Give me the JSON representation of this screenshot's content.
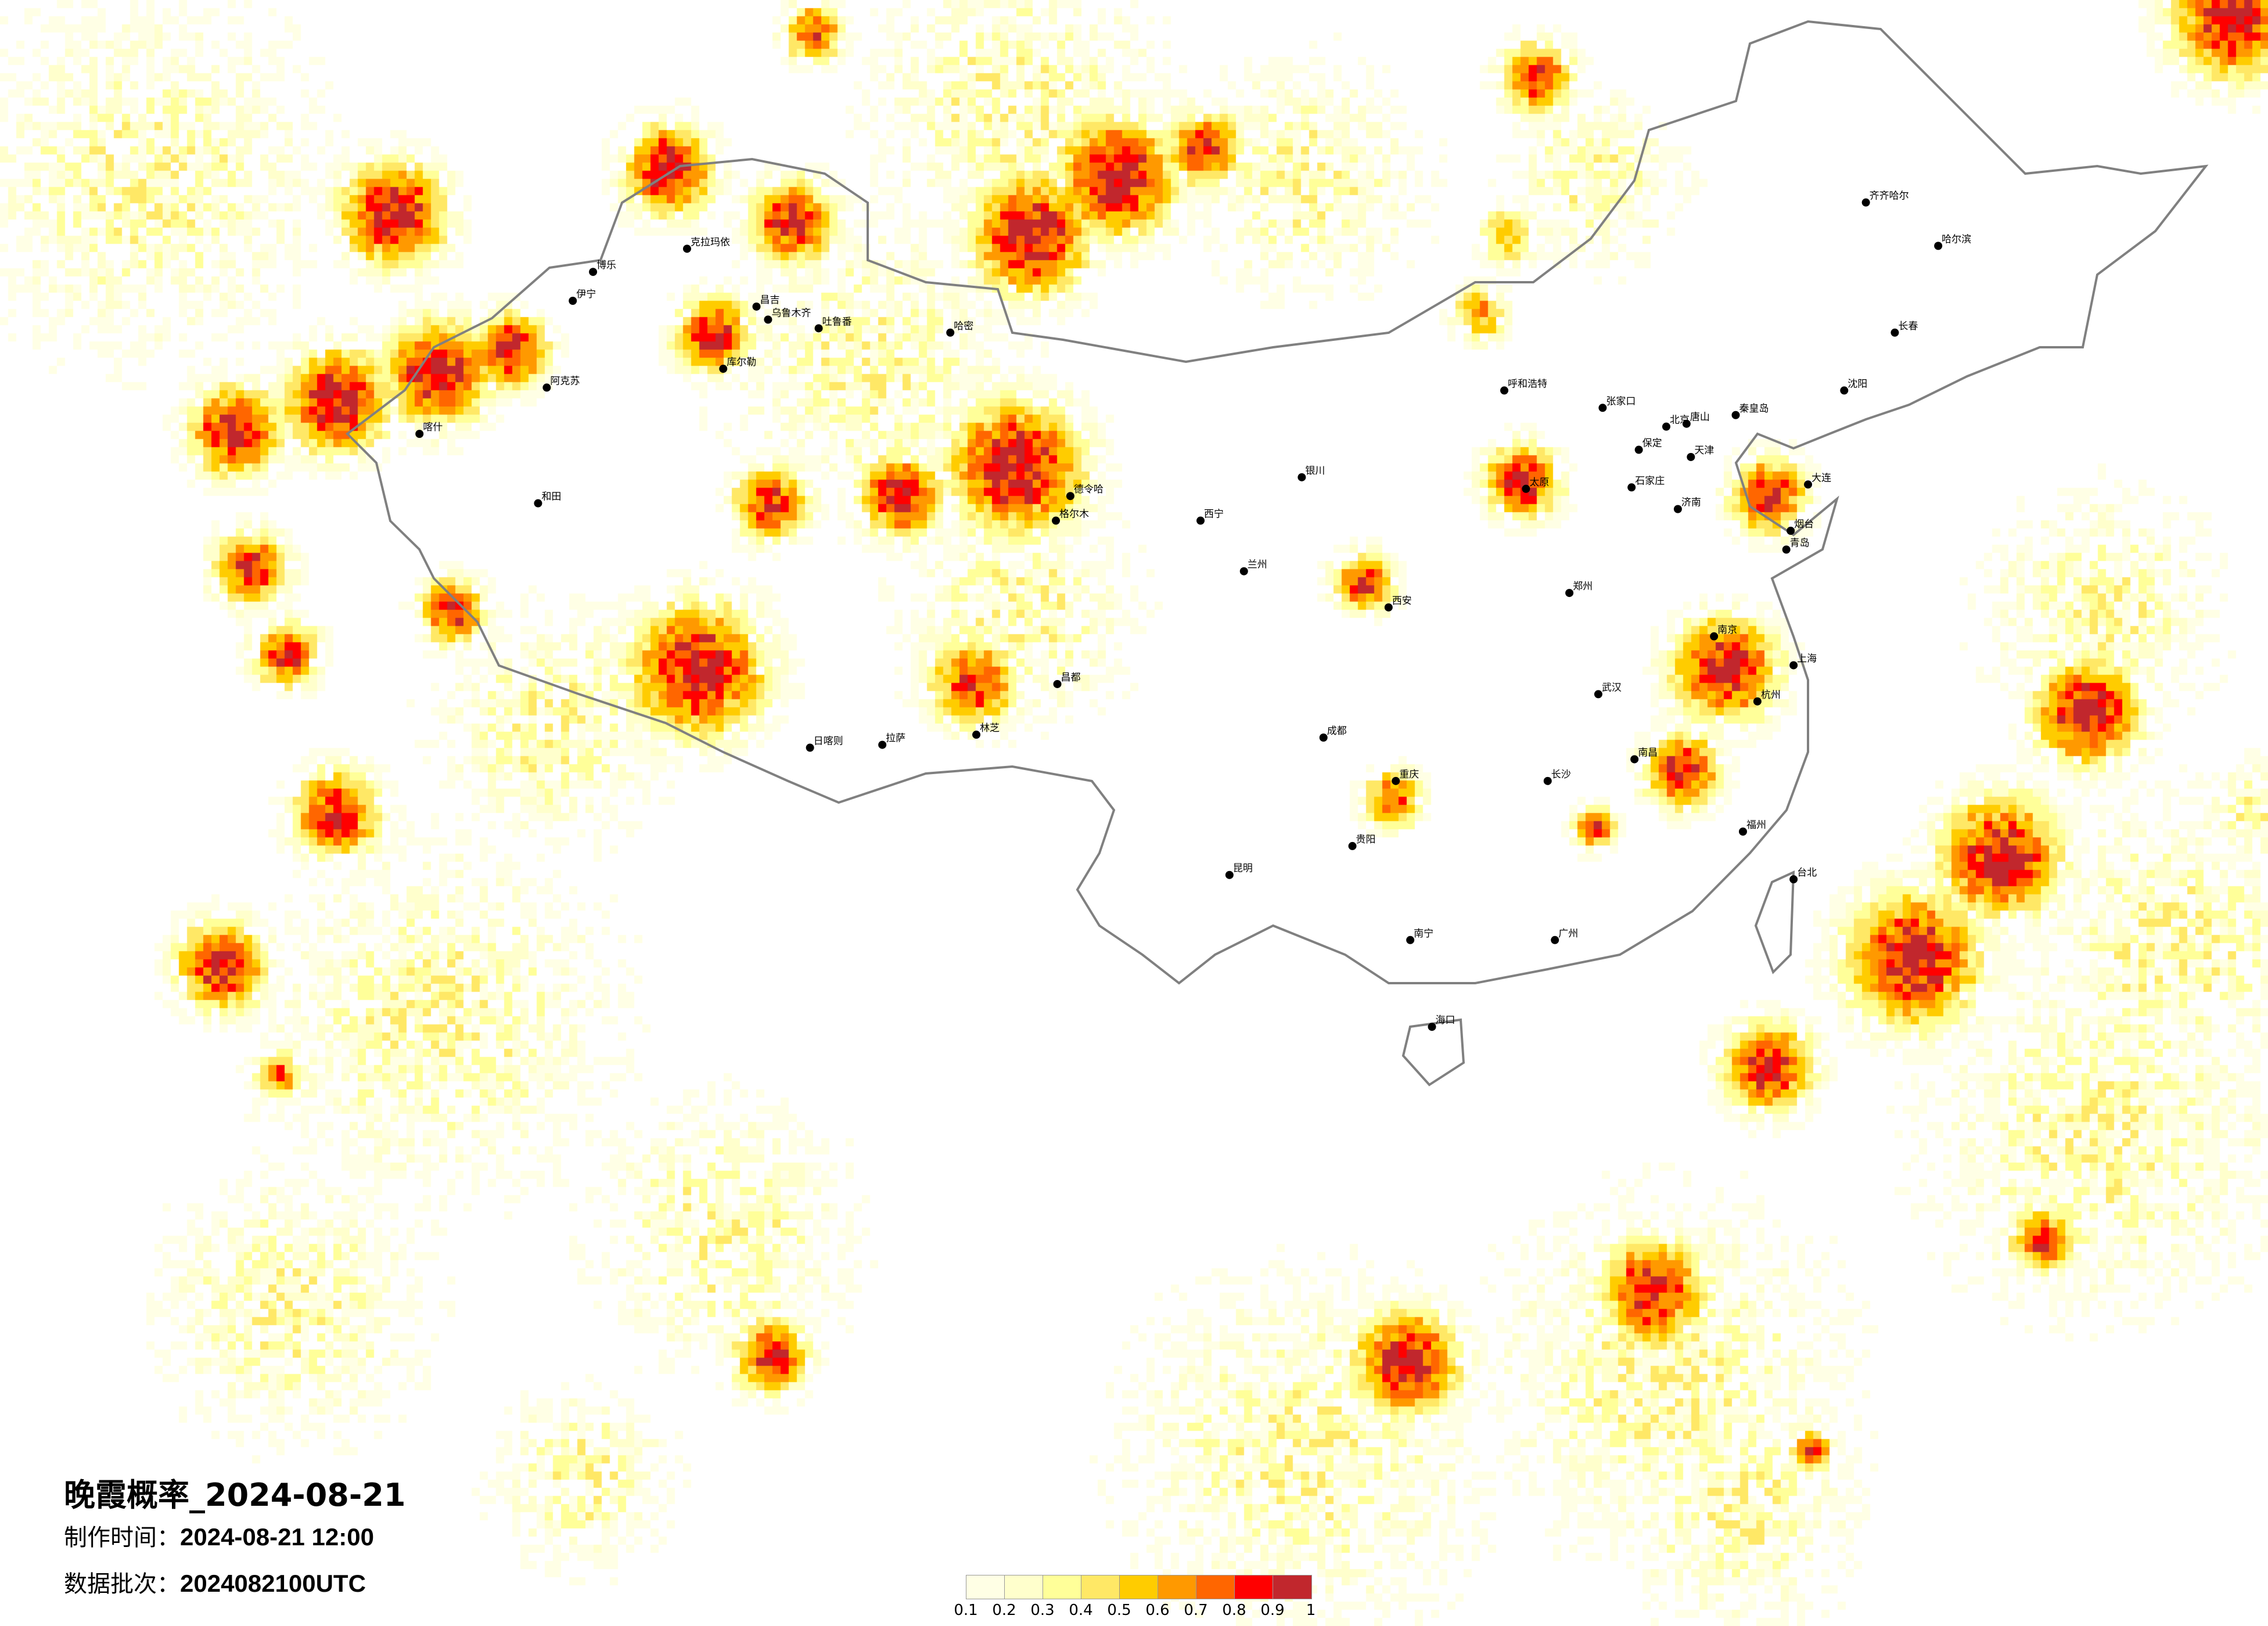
{
  "title": "晚霞概率_2024-08-21",
  "make_time": {
    "label": "制作时间：",
    "value": "2024-08-21 12:00"
  },
  "data_batch": {
    "label": "数据批次：",
    "value": "2024082100UTC"
  },
  "legend": {
    "ticks": [
      "0.1",
      "0.2",
      "0.3",
      "0.4",
      "0.5",
      "0.6",
      "0.7",
      "0.8",
      "0.9",
      "1"
    ],
    "colors": [
      "#FFFFE5",
      "#FFFFCC",
      "#FFFF99",
      "#FFE866",
      "#FFCC00",
      "#FF9900",
      "#FF6600",
      "#FF0000",
      "#C1272D"
    ]
  },
  "cities": [
    "克拉玛依",
    "伊宁",
    "博乐",
    "阿克苏",
    "库尔勒",
    "昌吉",
    "乌鲁木齐",
    "吐鲁番",
    "和田",
    "喀什",
    "哈密",
    "德令哈",
    "格尔木",
    "拉萨",
    "日喀则",
    "林芝",
    "昌都",
    "西宁",
    "兰州",
    "银川",
    "呼和浩特",
    "北京",
    "天津",
    "石家庄",
    "保定",
    "张家口",
    "太原",
    "济南",
    "青岛",
    "大连",
    "沈阳",
    "长春",
    "哈尔滨",
    "齐齐哈尔",
    "郑州",
    "西安",
    "成都",
    "重庆",
    "武汉",
    "南京",
    "上海",
    "杭州",
    "长沙",
    "南昌",
    "福州",
    "广州",
    "南宁",
    "昆明",
    "贵阳",
    "海口",
    "台北",
    "烟台",
    "唐山",
    "秦皇岛"
  ]
}
